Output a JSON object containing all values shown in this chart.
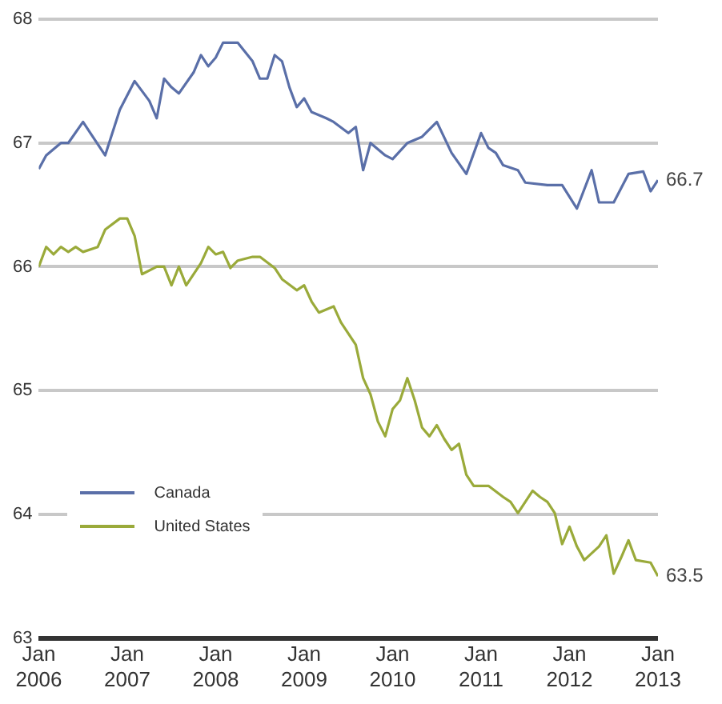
{
  "chart_data": {
    "type": "line",
    "xlim": [
      "2006-01",
      "2013-01"
    ],
    "ylim": [
      63,
      68
    ],
    "yticks": [
      63,
      64,
      65,
      66,
      67,
      68
    ],
    "xticks": [
      {
        "value": "2006-01",
        "label": "Jan 2006"
      },
      {
        "value": "2007-01",
        "label": "Jan 2007"
      },
      {
        "value": "2008-01",
        "label": "Jan 2008"
      },
      {
        "value": "2009-01",
        "label": "Jan 2009"
      },
      {
        "value": "2010-01",
        "label": "Jan 2010"
      },
      {
        "value": "2011-01",
        "label": "Jan 2011"
      },
      {
        "value": "2012-01",
        "label": "Jan 2012"
      },
      {
        "value": "2013-01",
        "label": "Jan 2013"
      }
    ],
    "grid": "y",
    "legend": "bottom left",
    "marker": "none",
    "line_style": "solid",
    "series": [
      {
        "name": "Canada",
        "color": "#5a6fa8",
        "x": [
          "2006-01",
          "2006-02",
          "2006-04",
          "2006-05",
          "2006-07",
          "2006-08",
          "2006-10",
          "2006-12",
          "2007-02",
          "2007-04",
          "2007-05",
          "2007-06",
          "2007-07",
          "2007-08",
          "2007-10",
          "2007-11",
          "2007-12",
          "2008-01",
          "2008-02",
          "2008-04",
          "2008-06",
          "2008-07",
          "2008-08",
          "2008-09",
          "2008-10",
          "2008-11",
          "2008-12",
          "2009-01",
          "2009-02",
          "2009-04",
          "2009-05",
          "2009-07",
          "2009-08",
          "2009-09",
          "2009-10",
          "2009-12",
          "2010-01",
          "2010-03",
          "2010-05",
          "2010-07",
          "2010-09",
          "2010-11",
          "2011-01",
          "2011-02",
          "2011-03",
          "2011-04",
          "2011-06",
          "2011-07",
          "2011-10",
          "2011-12",
          "2012-02",
          "2012-04",
          "2012-05",
          "2012-07",
          "2012-09",
          "2012-11",
          "2012-12",
          "2013-01"
        ],
        "values": [
          66.79,
          66.9,
          67.0,
          67.0,
          67.17,
          67.08,
          66.9,
          67.27,
          67.5,
          67.34,
          67.2,
          67.52,
          67.45,
          67.4,
          67.57,
          67.71,
          67.62,
          67.69,
          67.81,
          67.81,
          67.66,
          67.52,
          67.52,
          67.71,
          67.66,
          67.45,
          67.29,
          67.36,
          67.25,
          67.2,
          67.17,
          67.08,
          67.13,
          66.78,
          67.0,
          66.9,
          66.87,
          67.0,
          67.05,
          67.17,
          66.92,
          66.75,
          67.08,
          66.96,
          66.92,
          66.82,
          66.78,
          66.68,
          66.66,
          66.66,
          66.47,
          66.78,
          66.52,
          66.52,
          66.75,
          66.77,
          66.61,
          66.7
        ]
      },
      {
        "name": "United States",
        "color": "#9aaa3a",
        "x": [
          "2006-01",
          "2006-02",
          "2006-03",
          "2006-04",
          "2006-05",
          "2006-06",
          "2006-07",
          "2006-09",
          "2006-10",
          "2006-12",
          "2007-01",
          "2007-02",
          "2007-03",
          "2007-05",
          "2007-06",
          "2007-07",
          "2007-08",
          "2007-09",
          "2007-11",
          "2007-12",
          "2008-01",
          "2008-02",
          "2008-03",
          "2008-04",
          "2008-06",
          "2008-07",
          "2008-09",
          "2008-10",
          "2008-12",
          "2009-01",
          "2009-02",
          "2009-03",
          "2009-05",
          "2009-06",
          "2009-08",
          "2009-09",
          "2009-10",
          "2009-11",
          "2009-12",
          "2010-01",
          "2010-02",
          "2010-03",
          "2010-04",
          "2010-05",
          "2010-06",
          "2010-07",
          "2010-08",
          "2010-09",
          "2010-10",
          "2010-11",
          "2010-12",
          "2011-02",
          "2011-04",
          "2011-05",
          "2011-06",
          "2011-08",
          "2011-09",
          "2011-10",
          "2011-11",
          "2011-12",
          "2012-01",
          "2012-02",
          "2012-03",
          "2012-05",
          "2012-06",
          "2012-07",
          "2012-08",
          "2012-09",
          "2012-10",
          "2012-12",
          "2013-01"
        ],
        "values": [
          66.0,
          66.16,
          66.1,
          66.16,
          66.12,
          66.16,
          66.12,
          66.16,
          66.3,
          66.39,
          66.39,
          66.25,
          65.94,
          66.0,
          66.0,
          65.85,
          66.0,
          65.85,
          66.03,
          66.16,
          66.1,
          66.12,
          65.99,
          66.05,
          66.08,
          66.08,
          65.99,
          65.9,
          65.81,
          65.85,
          65.72,
          65.63,
          65.68,
          65.55,
          65.37,
          65.1,
          64.97,
          64.75,
          64.63,
          64.85,
          64.92,
          65.1,
          64.92,
          64.7,
          64.63,
          64.72,
          64.61,
          64.52,
          64.57,
          64.32,
          64.23,
          64.23,
          64.14,
          64.1,
          64.01,
          64.19,
          64.14,
          64.1,
          64.01,
          63.76,
          63.9,
          63.74,
          63.63,
          63.74,
          63.83,
          63.52,
          63.65,
          63.79,
          63.63,
          63.61,
          63.5
        ]
      }
    ],
    "annotations": [
      {
        "text": "66.7",
        "x": "2013-01",
        "y": 66.7
      },
      {
        "text": "63.5",
        "x": "2013-01",
        "y": 63.5
      }
    ]
  }
}
